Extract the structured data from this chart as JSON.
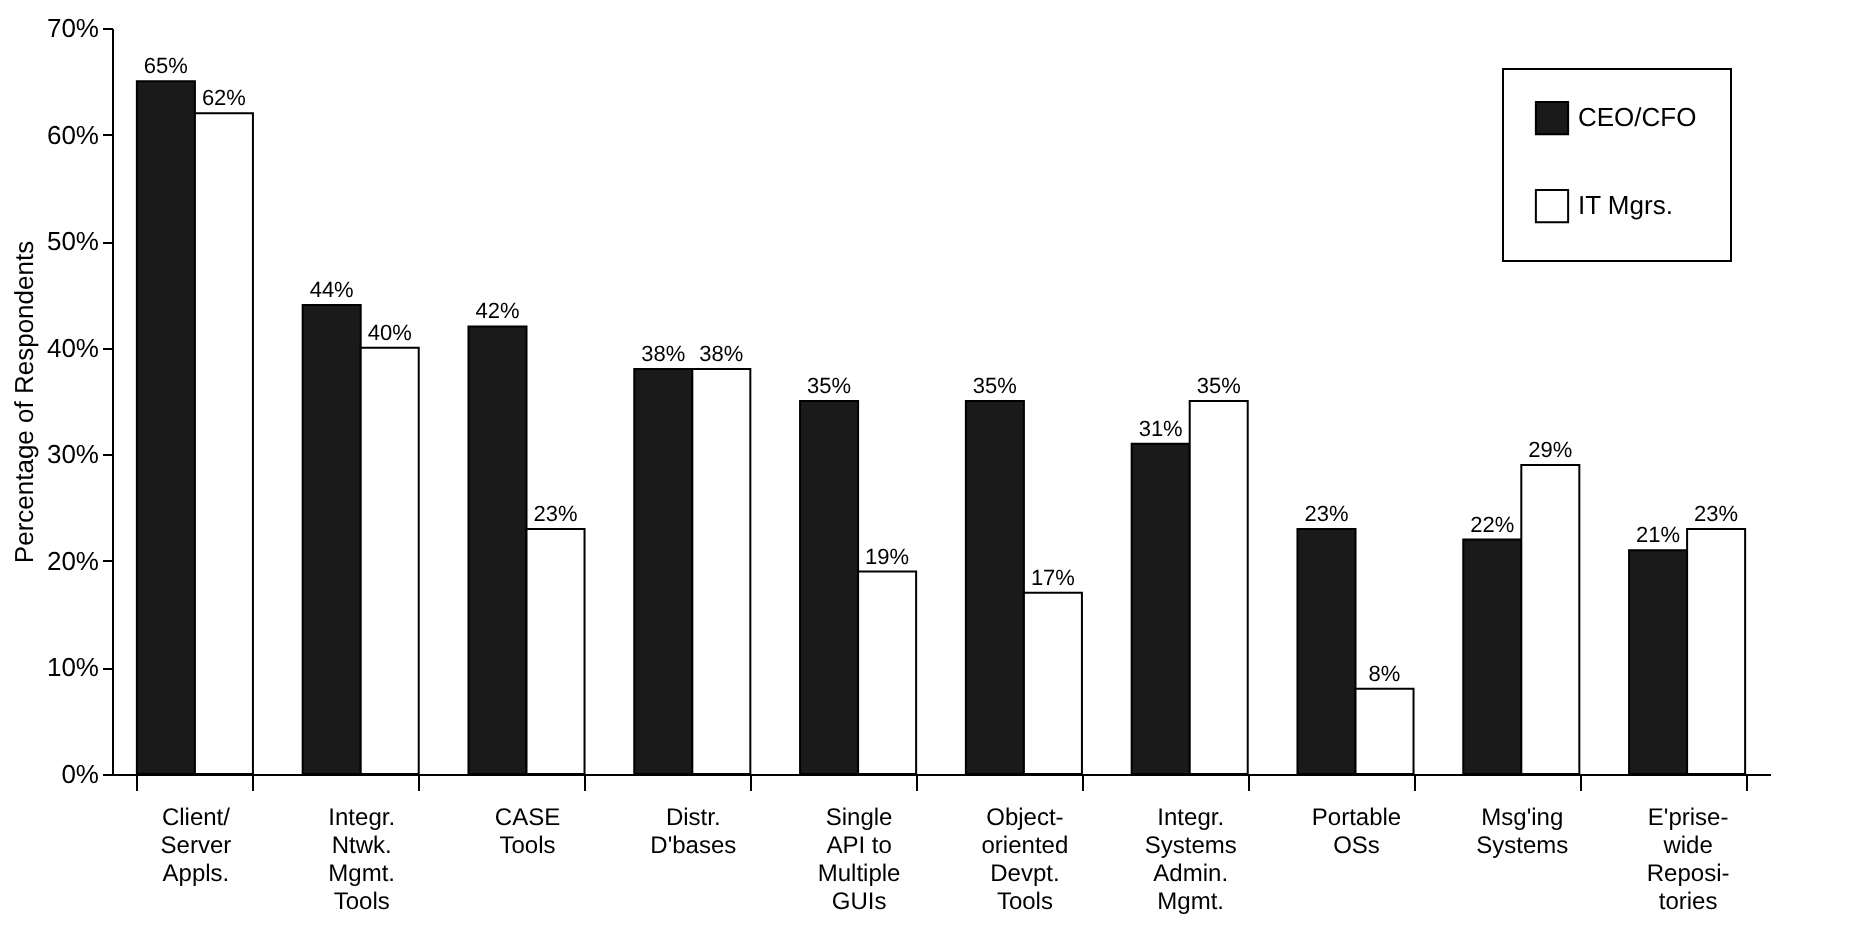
{
  "chart_data": {
    "type": "bar",
    "ylabel": "Percentage of Respondents",
    "categories": [
      "Client/\nServer\nAppls.",
      "Integr.\nNtwk.\nMgmt.\nTools",
      "CASE\nTools",
      "Distr.\nD'bases",
      "Single\nAPI to\nMultiple\nGUIs",
      "Object-\noriented\nDevpt.\nTools",
      "Integr.\nSystems\nAdmin.\nMgmt.",
      "Portable\nOSs",
      "Msg'ing\nSystems",
      "E'prise-\nwide\nReposi-\ntories"
    ],
    "series": [
      {
        "name": "CEO/CFO",
        "color": "#1a1a1a",
        "values": [
          65,
          44,
          42,
          38,
          35,
          35,
          31,
          23,
          22,
          21
        ],
        "value_labels": [
          "65%",
          "44%",
          "42%",
          "38%",
          "35%",
          "35%",
          "31%",
          "23%",
          "22%",
          "21%"
        ]
      },
      {
        "name": "IT Mgrs.",
        "color": "#ffffff",
        "values": [
          62,
          40,
          23,
          38,
          19,
          17,
          35,
          8,
          29,
          23
        ],
        "value_labels": [
          "62%",
          "40%",
          "23%",
          "38%",
          "19%",
          "17%",
          "35%",
          "8%",
          "29%",
          "23%"
        ]
      }
    ],
    "ylim": [
      0,
      70
    ],
    "yticks": [
      {
        "value": 0,
        "label": "0%"
      },
      {
        "value": 10,
        "label": "10%"
      },
      {
        "value": 20,
        "label": "20%"
      },
      {
        "value": 30,
        "label": "30%"
      },
      {
        "value": 40,
        "label": "40%"
      },
      {
        "value": 50,
        "label": "50%"
      },
      {
        "value": 60,
        "label": "60%"
      },
      {
        "value": 70,
        "label": "70%"
      }
    ],
    "grid": false,
    "legend": "top right"
  }
}
